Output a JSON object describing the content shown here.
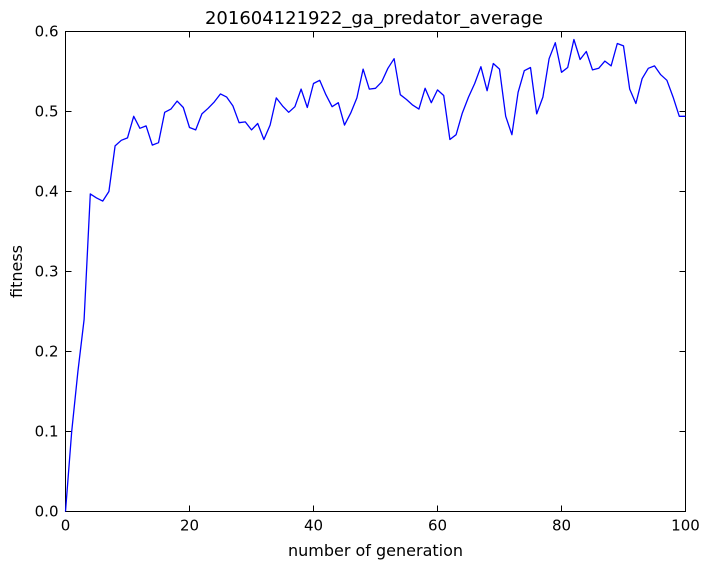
{
  "chart_data": {
    "type": "line",
    "title": "201604121922_ga_predator_average",
    "xlabel": "number of generation",
    "ylabel": "fitness",
    "xlim": [
      0,
      100
    ],
    "ylim": [
      0,
      0.6
    ],
    "xticks": [
      0,
      20,
      40,
      60,
      80,
      100
    ],
    "yticks": [
      0.0,
      0.1,
      0.2,
      0.3,
      0.4,
      0.5,
      0.6
    ],
    "xtick_labels": [
      "0",
      "20",
      "40",
      "60",
      "80",
      "100"
    ],
    "ytick_labels": [
      "0.0",
      "0.1",
      "0.2",
      "0.3",
      "0.4",
      "0.5",
      "0.6"
    ],
    "grid": false,
    "series": [
      {
        "color": "#0000ff",
        "x": [
          0,
          1,
          2,
          3,
          4,
          5,
          6,
          7,
          8,
          9,
          10,
          11,
          12,
          13,
          14,
          15,
          16,
          17,
          18,
          19,
          20,
          21,
          22,
          23,
          24,
          25,
          26,
          27,
          28,
          29,
          30,
          31,
          32,
          33,
          34,
          35,
          36,
          37,
          38,
          39,
          40,
          41,
          42,
          43,
          44,
          45,
          46,
          47,
          48,
          49,
          50,
          51,
          52,
          53,
          54,
          55,
          56,
          57,
          58,
          59,
          60,
          61,
          62,
          63,
          64,
          65,
          66,
          67,
          68,
          69,
          70,
          71,
          72,
          73,
          74,
          75,
          76,
          77,
          78,
          79,
          80,
          81,
          82,
          83,
          84,
          85,
          86,
          87,
          88,
          89,
          90,
          91,
          92,
          93,
          94,
          95,
          96,
          97,
          98,
          99,
          100
        ],
        "y": [
          0.0,
          0.1,
          0.175,
          0.24,
          0.397,
          0.392,
          0.388,
          0.4,
          0.457,
          0.464,
          0.467,
          0.494,
          0.479,
          0.482,
          0.458,
          0.461,
          0.499,
          0.503,
          0.513,
          0.505,
          0.48,
          0.477,
          0.497,
          0.504,
          0.512,
          0.522,
          0.518,
          0.507,
          0.486,
          0.487,
          0.477,
          0.485,
          0.465,
          0.483,
          0.517,
          0.507,
          0.499,
          0.506,
          0.528,
          0.505,
          0.535,
          0.539,
          0.521,
          0.506,
          0.511,
          0.483,
          0.498,
          0.517,
          0.553,
          0.528,
          0.529,
          0.537,
          0.554,
          0.566,
          0.521,
          0.515,
          0.508,
          0.503,
          0.529,
          0.511,
          0.527,
          0.52,
          0.465,
          0.471,
          0.498,
          0.518,
          0.535,
          0.556,
          0.526,
          0.56,
          0.553,
          0.494,
          0.471,
          0.524,
          0.551,
          0.555,
          0.497,
          0.518,
          0.566,
          0.586,
          0.549,
          0.555,
          0.59,
          0.565,
          0.575,
          0.552,
          0.554,
          0.563,
          0.557,
          0.585,
          0.582,
          0.528,
          0.51,
          0.541,
          0.554,
          0.557,
          0.546,
          0.539,
          0.518,
          0.494,
          0.494
        ]
      }
    ]
  }
}
